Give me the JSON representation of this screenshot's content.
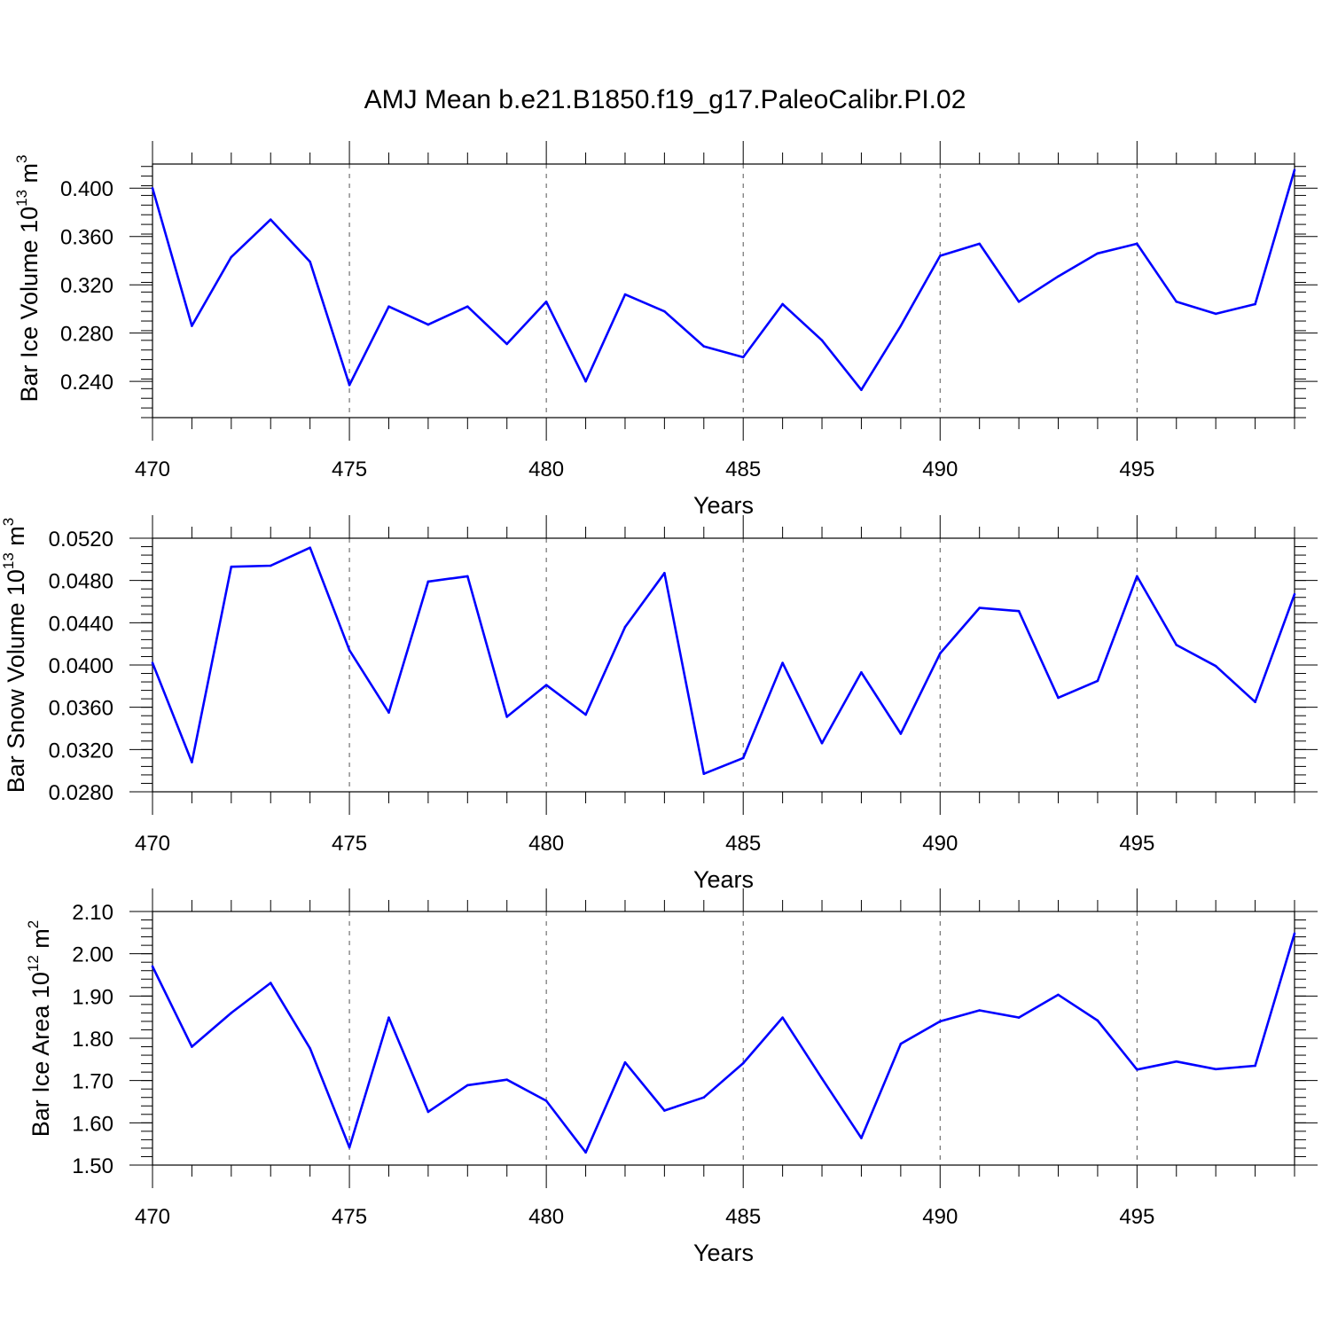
{
  "title": "AMJ Mean b.e21.B1850.f19_g17.PaleoCalibr.PI.02",
  "colors": {
    "line": "#0000ff",
    "axis": "#000000",
    "grid": "#555555"
  },
  "chart_data": [
    {
      "type": "line",
      "xlabel": "Years",
      "ylabel": {
        "main": "Bar Ice Volume 10",
        "sup1": "13",
        "unit": " m",
        "sup2": "3"
      },
      "xlim": [
        470,
        499
      ],
      "ylim": [
        0.21,
        0.42
      ],
      "x_ticks": [
        470,
        475,
        480,
        485,
        490,
        495
      ],
      "x_tick_labels": [
        "470",
        "475",
        "480",
        "485",
        "490",
        "495"
      ],
      "y_ticks": [
        0.24,
        0.28,
        0.32,
        0.36,
        0.4
      ],
      "y_tick_labels": [
        "0.240",
        "0.280",
        "0.320",
        "0.360",
        "0.400"
      ],
      "y_minor_step": 0.008,
      "grid": "vertical dashed at major x ticks",
      "x": [
        470,
        471,
        472,
        473,
        474,
        475,
        476,
        477,
        478,
        479,
        480,
        481,
        482,
        483,
        484,
        485,
        486,
        487,
        488,
        489,
        490,
        491,
        492,
        493,
        494,
        495,
        496,
        497,
        498,
        499
      ],
      "values": [
        0.4,
        0.286,
        0.343,
        0.374,
        0.339,
        0.237,
        0.302,
        0.287,
        0.302,
        0.271,
        0.306,
        0.24,
        0.312,
        0.298,
        0.269,
        0.26,
        0.304,
        0.274,
        0.233,
        0.286,
        0.344,
        0.354,
        0.306,
        0.327,
        0.346,
        0.354,
        0.306,
        0.296,
        0.304,
        0.415
      ]
    },
    {
      "type": "line",
      "xlabel": "Years",
      "ylabel": {
        "main": "Bar Snow Volume 10",
        "sup1": "13",
        "unit": " m",
        "sup2": "3"
      },
      "xlim": [
        470,
        499
      ],
      "ylim": [
        0.028,
        0.052
      ],
      "x_ticks": [
        470,
        475,
        480,
        485,
        490,
        495
      ],
      "x_tick_labels": [
        "470",
        "475",
        "480",
        "485",
        "490",
        "495"
      ],
      "y_ticks": [
        0.028,
        0.032,
        0.036,
        0.04,
        0.044,
        0.048,
        0.052
      ],
      "y_tick_labels": [
        "0.0280",
        "0.0320",
        "0.0360",
        "0.0400",
        "0.0440",
        "0.0480",
        "0.0520"
      ],
      "y_minor_step": 0.0008,
      "grid": "vertical dashed at major x ticks",
      "x": [
        470,
        471,
        472,
        473,
        474,
        475,
        476,
        477,
        478,
        479,
        480,
        481,
        482,
        483,
        484,
        485,
        486,
        487,
        488,
        489,
        490,
        491,
        492,
        493,
        494,
        495,
        496,
        497,
        498,
        499
      ],
      "values": [
        0.0402,
        0.0308,
        0.0493,
        0.0494,
        0.0511,
        0.0414,
        0.0355,
        0.0479,
        0.0484,
        0.0351,
        0.0381,
        0.0353,
        0.0436,
        0.0487,
        0.0297,
        0.0312,
        0.0402,
        0.0326,
        0.0393,
        0.0335,
        0.0411,
        0.0454,
        0.0451,
        0.0369,
        0.0385,
        0.0484,
        0.0419,
        0.0399,
        0.0365,
        0.0467
      ]
    },
    {
      "type": "line",
      "xlabel": "Years",
      "ylabel": {
        "main": "Bar Ice Area 10",
        "sup1": "12",
        "unit": " m",
        "sup2": "2"
      },
      "xlim": [
        470,
        499
      ],
      "ylim": [
        1.5,
        2.1
      ],
      "x_ticks": [
        470,
        475,
        480,
        485,
        490,
        495
      ],
      "x_tick_labels": [
        "470",
        "475",
        "480",
        "485",
        "490",
        "495"
      ],
      "y_ticks": [
        1.5,
        1.6,
        1.7,
        1.8,
        1.9,
        2.0,
        2.1
      ],
      "y_tick_labels": [
        "1.50",
        "1.60",
        "1.70",
        "1.80",
        "1.90",
        "2.00",
        "2.10"
      ],
      "y_minor_step": 0.02,
      "grid": "vertical dashed at major x ticks",
      "x": [
        470,
        471,
        472,
        473,
        474,
        475,
        476,
        477,
        478,
        479,
        480,
        481,
        482,
        483,
        484,
        485,
        486,
        487,
        488,
        489,
        490,
        491,
        492,
        493,
        494,
        495,
        496,
        497,
        498,
        499
      ],
      "values": [
        1.97,
        1.78,
        1.86,
        1.931,
        1.776,
        1.542,
        1.849,
        1.626,
        1.689,
        1.702,
        1.652,
        1.53,
        1.743,
        1.629,
        1.66,
        1.741,
        1.849,
        1.705,
        1.564,
        1.787,
        1.84,
        1.866,
        1.849,
        1.903,
        1.842,
        1.726,
        1.745,
        1.727,
        1.735,
        2.048
      ]
    }
  ]
}
